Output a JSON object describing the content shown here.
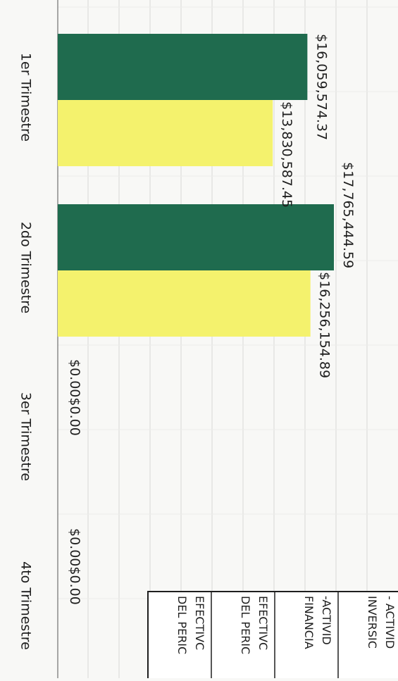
{
  "chart_data": {
    "type": "bar",
    "orientation": "horizontal-rotated",
    "categories": [
      "1er Trimestre",
      "2do Trimestre",
      "3er Trimestre",
      "4to Trimestre"
    ],
    "series": [
      {
        "values": [
          16059574.37,
          17765444.59,
          0,
          0
        ],
        "labels": [
          "$16,059,574.37",
          "$17,765,444.59",
          "$0.00",
          "$0.00"
        ]
      },
      {
        "values": [
          13830587.45,
          16256154.89,
          0,
          0
        ],
        "labels": [
          "$13,830,587.45",
          "$16,256,154.89",
          "$0.00",
          "$0.00"
        ]
      }
    ],
    "grid": true,
    "legend_position": "bottom-right",
    "legend_items": [
      "- ACTIVID",
      "INVERSIC",
      "-ACTIVID",
      "FINANCIA",
      "EFECTIVC",
      "DEL PERIC",
      "EFECTIVC",
      "DEL PERIC"
    ]
  },
  "colors": {
    "series_1": "#1f6b4e",
    "series_2": "#f4f26d",
    "grid": "#d9d9d6",
    "axis": "#8a8a8a",
    "text": "#1e1e1e"
  }
}
